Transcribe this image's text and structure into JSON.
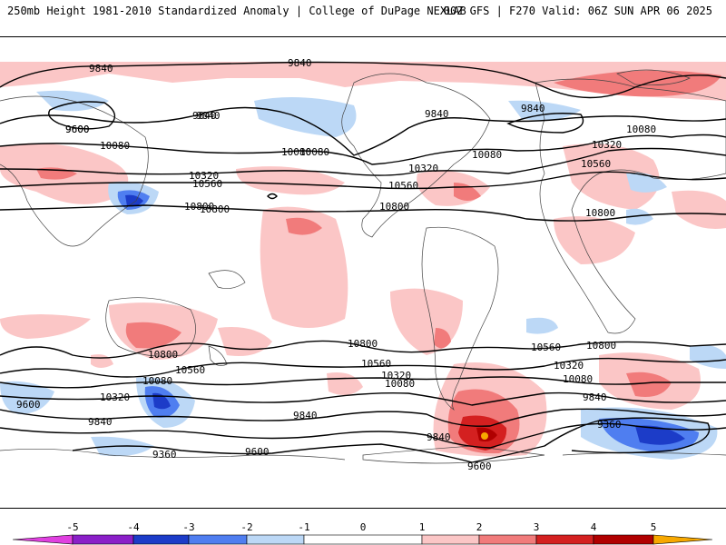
{
  "header": {
    "title_left": "250mb Height 1981-2010 Standardized Anomaly | College of DuPage NEXLAB",
    "title_right": "00Z GFS | F270 Valid: 06Z SUN APR 06 2025"
  },
  "contour_labels": {
    "c1": "9840",
    "c2": "9840",
    "c3": "9600",
    "c4": "9840",
    "c5": "10080",
    "c6": "10320",
    "c7": "10560",
    "c8": "10800",
    "c9": "10080",
    "c10": "10320",
    "c11": "10560",
    "c12": "10800",
    "c13": "9840",
    "c14": "9840",
    "c15": "10080",
    "c16": "10320",
    "c17": "10560",
    "c18": "10800",
    "c19": "10080",
    "c20": "10800",
    "c21": "10800",
    "c22": "10560",
    "c23": "10080",
    "c24": "10320",
    "c25": "9600",
    "c26": "9840",
    "c27": "10800",
    "c28": "10560",
    "c29": "10320",
    "c30": "10080",
    "c31": "9840",
    "c32": "9840",
    "c33": "9600",
    "c34": "9360",
    "c35": "9840",
    "c36": "9600",
    "c37": "10560",
    "c38": "10320",
    "c39": "10080",
    "c40": "9840",
    "c41": "9360",
    "c42": "10800",
    "c43": "10080",
    "c44": "9600"
  },
  "colorbar": {
    "ticks": [
      "-5",
      "-4",
      "-3",
      "-2",
      "-1",
      "0",
      "1",
      "2",
      "3",
      "4",
      "5"
    ],
    "colors": {
      "neg5": "#e040e0",
      "neg4": "#8a1fc8",
      "neg3": "#1c3cc8",
      "neg2": "#4f7ef0",
      "neg1": "#bcd8f6",
      "zero": "#ffffff",
      "pos1": "#fbc6c6",
      "pos2": "#f17b7b",
      "pos3": "#d42020",
      "pos4": "#b00000",
      "pos5": "#f7a800"
    }
  }
}
